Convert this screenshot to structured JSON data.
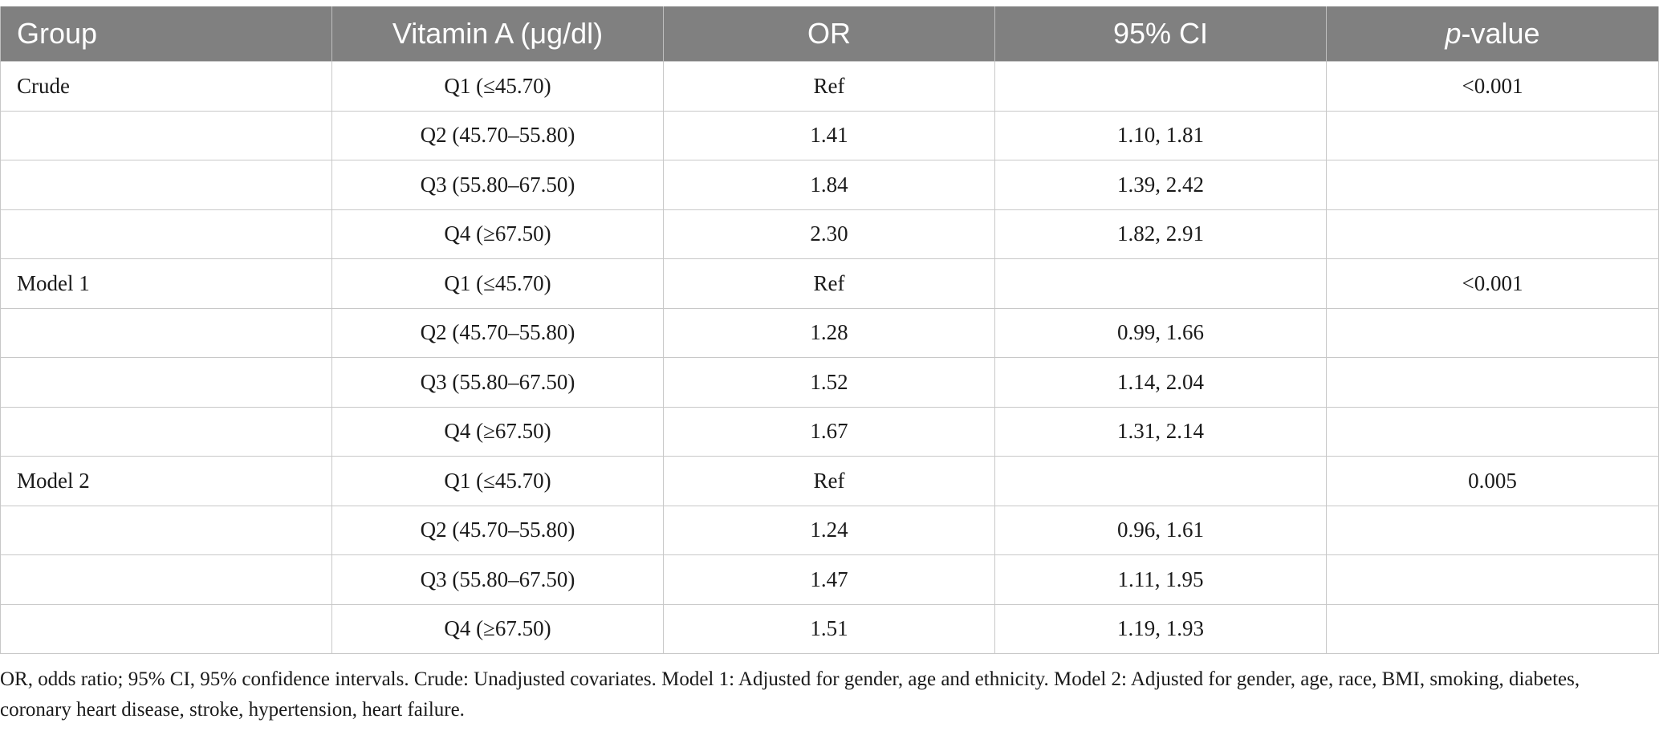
{
  "table": {
    "headers": {
      "group": "Group",
      "vitamin": "Vitamin A (μg/dl)",
      "or": "OR",
      "ci": "95% CI",
      "p_italic": "p",
      "p_rest": "-value"
    },
    "rows": [
      {
        "group": "Crude",
        "vitamin": "Q1 (≤45.70)",
        "or": "Ref",
        "ci": "",
        "p": "<0.001"
      },
      {
        "group": "",
        "vitamin": "Q2 (45.70–55.80)",
        "or": "1.41",
        "ci": "1.10, 1.81",
        "p": ""
      },
      {
        "group": "",
        "vitamin": "Q3 (55.80–67.50)",
        "or": "1.84",
        "ci": "1.39, 2.42",
        "p": ""
      },
      {
        "group": "",
        "vitamin": "Q4 (≥67.50)",
        "or": "2.30",
        "ci": "1.82, 2.91",
        "p": ""
      },
      {
        "group": "Model 1",
        "vitamin": "Q1 (≤45.70)",
        "or": "Ref",
        "ci": "",
        "p": "<0.001"
      },
      {
        "group": "",
        "vitamin": "Q2 (45.70–55.80)",
        "or": "1.28",
        "ci": "0.99, 1.66",
        "p": ""
      },
      {
        "group": "",
        "vitamin": "Q3 (55.80–67.50)",
        "or": "1.52",
        "ci": "1.14, 2.04",
        "p": ""
      },
      {
        "group": "",
        "vitamin": "Q4 (≥67.50)",
        "or": "1.67",
        "ci": "1.31, 2.14",
        "p": ""
      },
      {
        "group": "Model 2",
        "vitamin": "Q1 (≤45.70)",
        "or": "Ref",
        "ci": "",
        "p": "0.005"
      },
      {
        "group": "",
        "vitamin": "Q2 (45.70–55.80)",
        "or": "1.24",
        "ci": "0.96, 1.61",
        "p": ""
      },
      {
        "group": "",
        "vitamin": "Q3 (55.80–67.50)",
        "or": "1.47",
        "ci": "1.11, 1.95",
        "p": ""
      },
      {
        "group": "",
        "vitamin": "Q4 (≥67.50)",
        "or": "1.51",
        "ci": "1.19, 1.93",
        "p": ""
      }
    ]
  },
  "footnote": "OR, odds ratio; 95% CI, 95% confidence intervals. Crude: Unadjusted covariates. Model 1: Adjusted for gender, age and ethnicity. Model 2: Adjusted for gender, age, race, BMI, smoking, diabetes, coronary heart disease, stroke, hypertension, heart failure.",
  "colors": {
    "header_bg": "#808080",
    "header_text": "#ffffff",
    "border": "#c8c8c8"
  }
}
